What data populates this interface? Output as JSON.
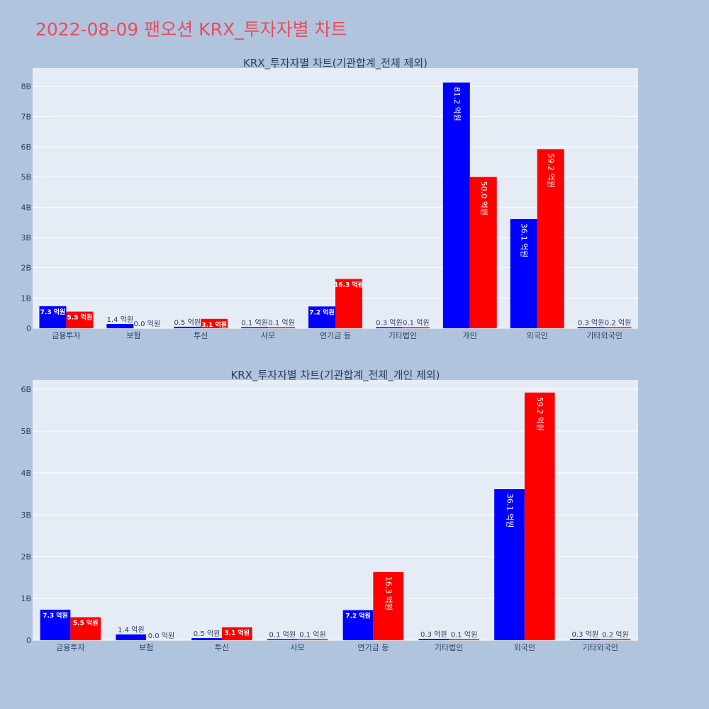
{
  "title": "2022-08-09 팬오션 KRX_투자자별 차트",
  "colors": {
    "buy": "#0000ff",
    "sell": "#ff0000",
    "plot_bg": "#e5ecf6",
    "page_bg": "#b0c4de",
    "title": "#ea4c5c"
  },
  "chart_data": [
    {
      "type": "bar",
      "title": "KRX_투자자별 차트(기관합계_전체 제외)",
      "categories": [
        "금융투자",
        "보험",
        "투신",
        "사모",
        "연기금 등",
        "기타법인",
        "개인",
        "외국인",
        "기타외국인"
      ],
      "series": [
        {
          "color": "#0000ff",
          "values": [
            730000000,
            140000000,
            50000000,
            10000000,
            720000000,
            30000000,
            8120000000,
            3610000000,
            30000000
          ],
          "labels": [
            "7.3 억원",
            "1.4 억원",
            "0.5 억원",
            "0.1 억원",
            "7.2 억원",
            "0.3 억원",
            "81.2 억원",
            "36.1 억원",
            "0.3 억원"
          ]
        },
        {
          "color": "#ff0000",
          "values": [
            550000000,
            0,
            310000000,
            10000000,
            1630000000,
            10000000,
            5000000000,
            5920000000,
            20000000
          ],
          "labels": [
            "5.5 억원",
            "0.0 억원",
            "3.1 억원",
            "0.1 억원",
            "16.3 억원",
            "0.1 억원",
            "50.0 억원",
            "59.2 억원",
            "0.2 억원"
          ]
        }
      ],
      "yticks": [
        0,
        1000000000,
        2000000000,
        3000000000,
        4000000000,
        5000000000,
        6000000000,
        7000000000,
        8000000000
      ],
      "ytick_labels": [
        "0",
        "1B",
        "2B",
        "3B",
        "4B",
        "5B",
        "6B",
        "7B",
        "8B"
      ],
      "ylim": [
        0,
        8600000000
      ],
      "grid": true
    },
    {
      "type": "bar",
      "title": "KRX_투자자별 차트(기관합계_전체_개인 제외)",
      "categories": [
        "금융투자",
        "보험",
        "투신",
        "사모",
        "연기금 등",
        "기타법인",
        "외국인",
        "기타외국인"
      ],
      "series": [
        {
          "color": "#0000ff",
          "values": [
            730000000,
            140000000,
            50000000,
            10000000,
            720000000,
            30000000,
            3610000000,
            30000000
          ],
          "labels": [
            "7.3 억원",
            "1.4 억원",
            "0.5 억원",
            "0.1 억원",
            "7.2 억원",
            "0.3 억원",
            "36.1 억원",
            "0.3 억원"
          ]
        },
        {
          "color": "#ff0000",
          "values": [
            550000000,
            0,
            310000000,
            10000000,
            1630000000,
            10000000,
            5920000000,
            20000000
          ],
          "labels": [
            "5.5 억원",
            "0.0 억원",
            "3.1 억원",
            "0.1 억원",
            "16.3 억원",
            "0.1 억원",
            "59.2 억원",
            "0.2 억원"
          ]
        }
      ],
      "yticks": [
        0,
        1000000000,
        2000000000,
        3000000000,
        4000000000,
        5000000000,
        6000000000
      ],
      "ytick_labels": [
        "0",
        "1B",
        "2B",
        "3B",
        "4B",
        "5B",
        "6B"
      ],
      "ylim": [
        0,
        6220000000
      ],
      "grid": true
    }
  ]
}
